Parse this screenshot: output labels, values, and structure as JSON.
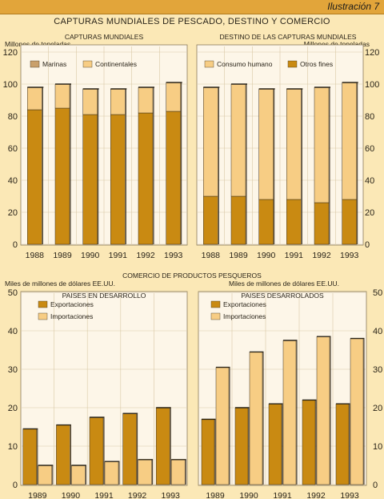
{
  "header": {
    "illustration": "Ilustración 7",
    "title": "CAPTURAS MUNDIALES DE PESCADO, DESTINO Y COMERCIO"
  },
  "colors": {
    "dark": "#c98a12",
    "light": "#f7cd84",
    "panel": "#fdf6e8",
    "page": "#fbe8b6"
  },
  "section2": {
    "title": "COMERCIO DE PRODUCTOS PESQUEROS"
  },
  "chart_data": [
    {
      "type": "bar",
      "title": "CAPTURAS MUNDIALES",
      "ylabel": "Millones de toneladas",
      "ylim": [
        0,
        120
      ],
      "yticks": [
        0,
        20,
        40,
        60,
        80,
        100,
        120
      ],
      "stacked": true,
      "categories": [
        "1988",
        "1989",
        "1990",
        "1991",
        "1992",
        "1993"
      ],
      "series": [
        {
          "name": "Marinas",
          "values": [
            84,
            85,
            81,
            81,
            82,
            83
          ]
        },
        {
          "name": "Continentales",
          "values": [
            14,
            15,
            16,
            16,
            16,
            18
          ]
        }
      ]
    },
    {
      "type": "bar",
      "title": "DESTINO DE LAS CAPTURAS MUNDIALES",
      "ylabel": "Millones de toneladas",
      "ylim": [
        0,
        120
      ],
      "yticks": [
        0,
        20,
        40,
        60,
        80,
        100,
        120
      ],
      "stacked": true,
      "categories": [
        "1988",
        "1989",
        "1990",
        "1991",
        "1992",
        "1993"
      ],
      "series": [
        {
          "name": "Otros fines",
          "values": [
            30,
            30,
            28,
            28,
            26,
            28
          ]
        },
        {
          "name": "Consumo humano",
          "values": [
            68,
            70,
            69,
            69,
            72,
            73
          ]
        }
      ]
    },
    {
      "type": "bar",
      "title": "PAISES EN DESARROLLO",
      "ylabel": "Miles de millones de dólares EE.UU.",
      "ylim": [
        0,
        50
      ],
      "yticks": [
        0,
        10,
        20,
        30,
        40,
        50
      ],
      "stacked": false,
      "categories": [
        "1989",
        "1990",
        "1991",
        "1992",
        "1993"
      ],
      "series": [
        {
          "name": "Exportaciones",
          "values": [
            14.5,
            15.5,
            17.5,
            18.5,
            20
          ]
        },
        {
          "name": "Importaciones",
          "values": [
            5,
            5,
            6,
            6.5,
            6.5
          ]
        }
      ]
    },
    {
      "type": "bar",
      "title": "PAISES DESARROLADOS",
      "ylabel": "Miles de millones de dólares EE.UU.",
      "ylim": [
        0,
        50
      ],
      "yticks": [
        0,
        10,
        20,
        30,
        40,
        50
      ],
      "stacked": false,
      "categories": [
        "1989",
        "1990",
        "1991",
        "1992",
        "1993"
      ],
      "series": [
        {
          "name": "Exportaciones",
          "values": [
            17,
            20,
            21,
            22,
            21
          ]
        },
        {
          "name": "Importaciones",
          "values": [
            30.5,
            34.5,
            37.5,
            38.5,
            38
          ]
        }
      ]
    }
  ]
}
